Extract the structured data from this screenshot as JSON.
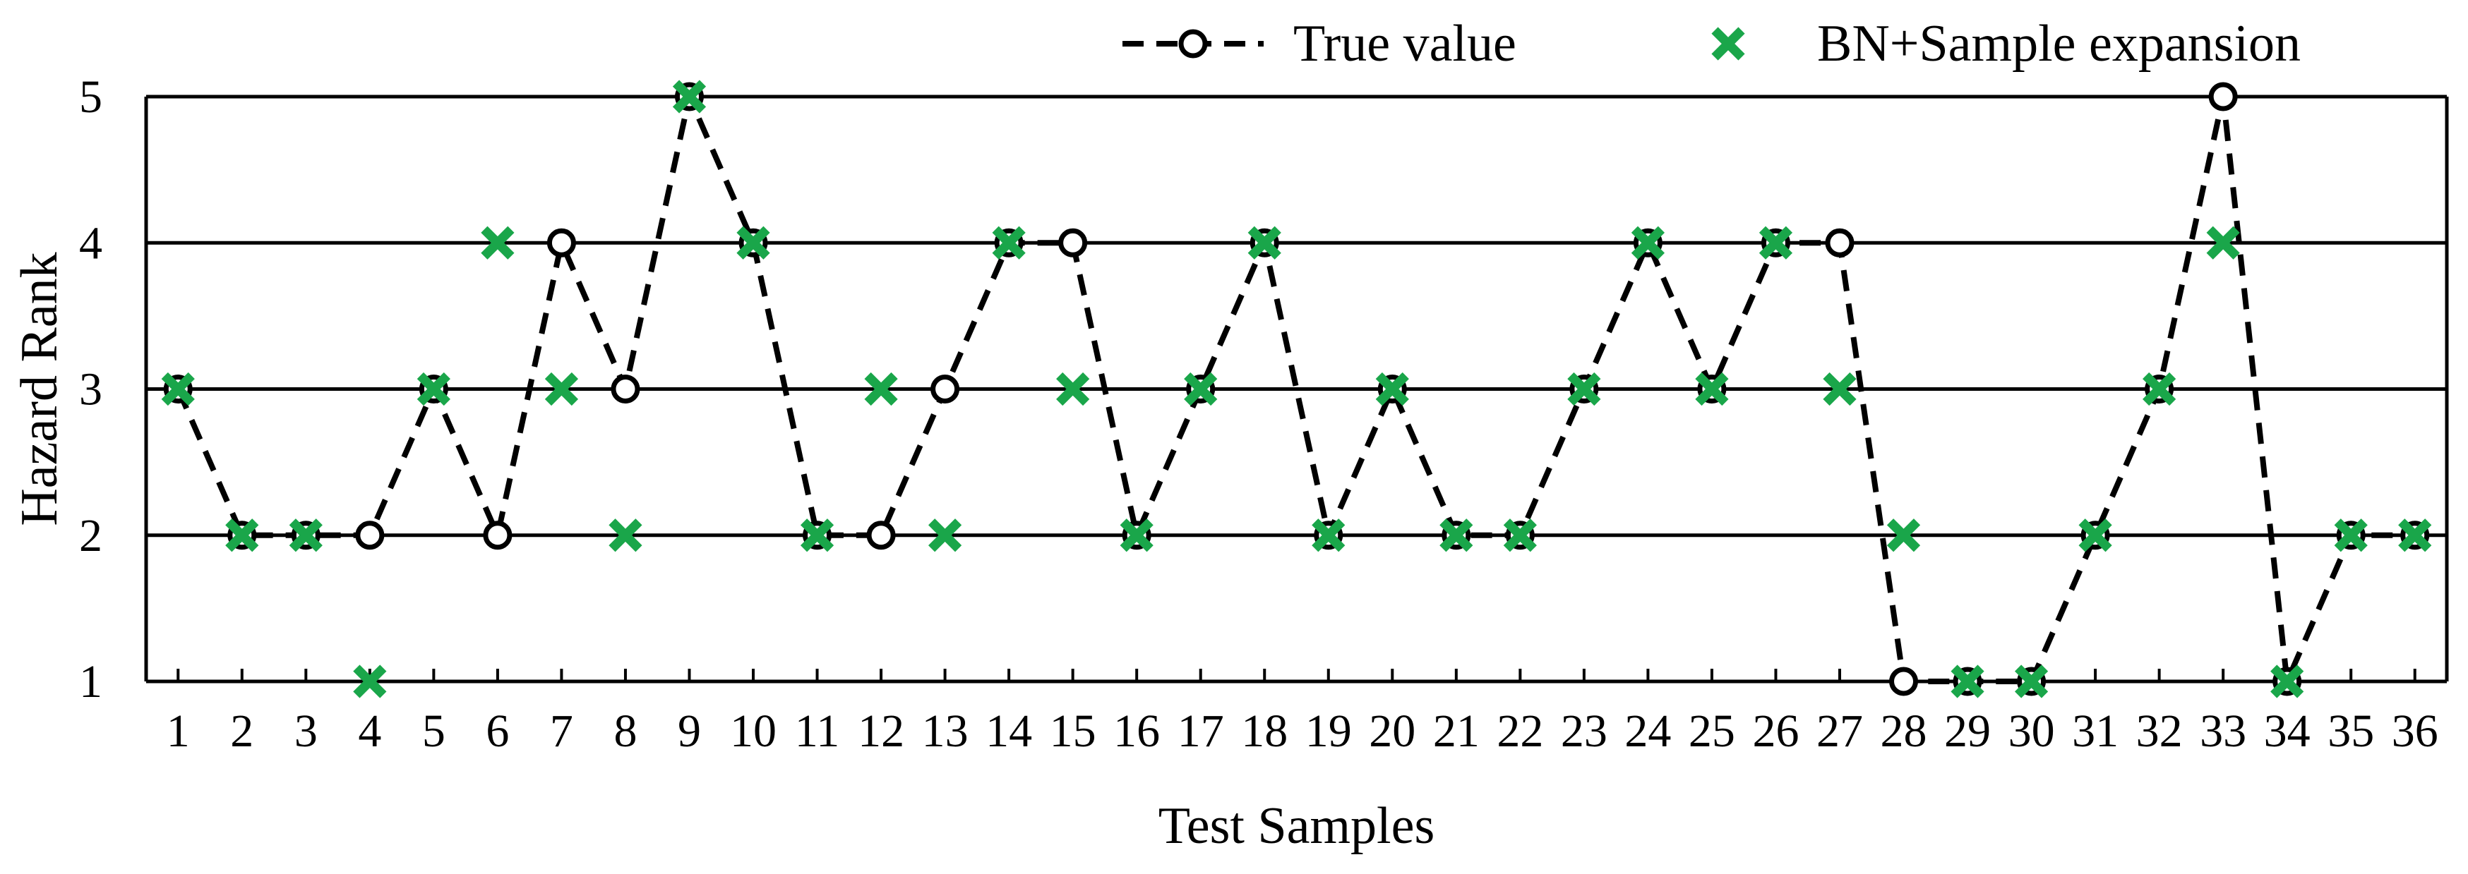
{
  "chart_data": {
    "type": "line",
    "xlabel": "Test Samples",
    "ylabel": "Hazard Rank",
    "x": [
      1,
      2,
      3,
      4,
      5,
      6,
      7,
      8,
      9,
      10,
      11,
      12,
      13,
      14,
      15,
      16,
      17,
      18,
      19,
      20,
      21,
      22,
      23,
      24,
      25,
      26,
      27,
      28,
      29,
      30,
      31,
      32,
      33,
      34,
      35,
      36
    ],
    "ylim": [
      1,
      5
    ],
    "yticks": [
      1,
      2,
      3,
      4,
      5
    ],
    "grid": "horizontal",
    "legend_position": "top",
    "series": [
      {
        "name": "True value",
        "style": "dashed-line-with-open-circles",
        "color": "#000000",
        "values": [
          3,
          2,
          2,
          2,
          3,
          2,
          4,
          3,
          5,
          4,
          2,
          2,
          3,
          4,
          4,
          2,
          3,
          4,
          2,
          3,
          2,
          2,
          3,
          4,
          3,
          4,
          4,
          1,
          1,
          1,
          2,
          3,
          5,
          1,
          2,
          2
        ]
      },
      {
        "name": "BN+Sample expansion",
        "style": "x-markers",
        "color": "#1aa64a",
        "values": [
          3,
          2,
          2,
          1,
          3,
          4,
          3,
          2,
          5,
          4,
          2,
          3,
          2,
          4,
          3,
          2,
          3,
          4,
          2,
          3,
          2,
          2,
          3,
          4,
          3,
          4,
          3,
          2,
          1,
          1,
          2,
          3,
          4,
          1,
          2,
          2
        ]
      }
    ]
  }
}
